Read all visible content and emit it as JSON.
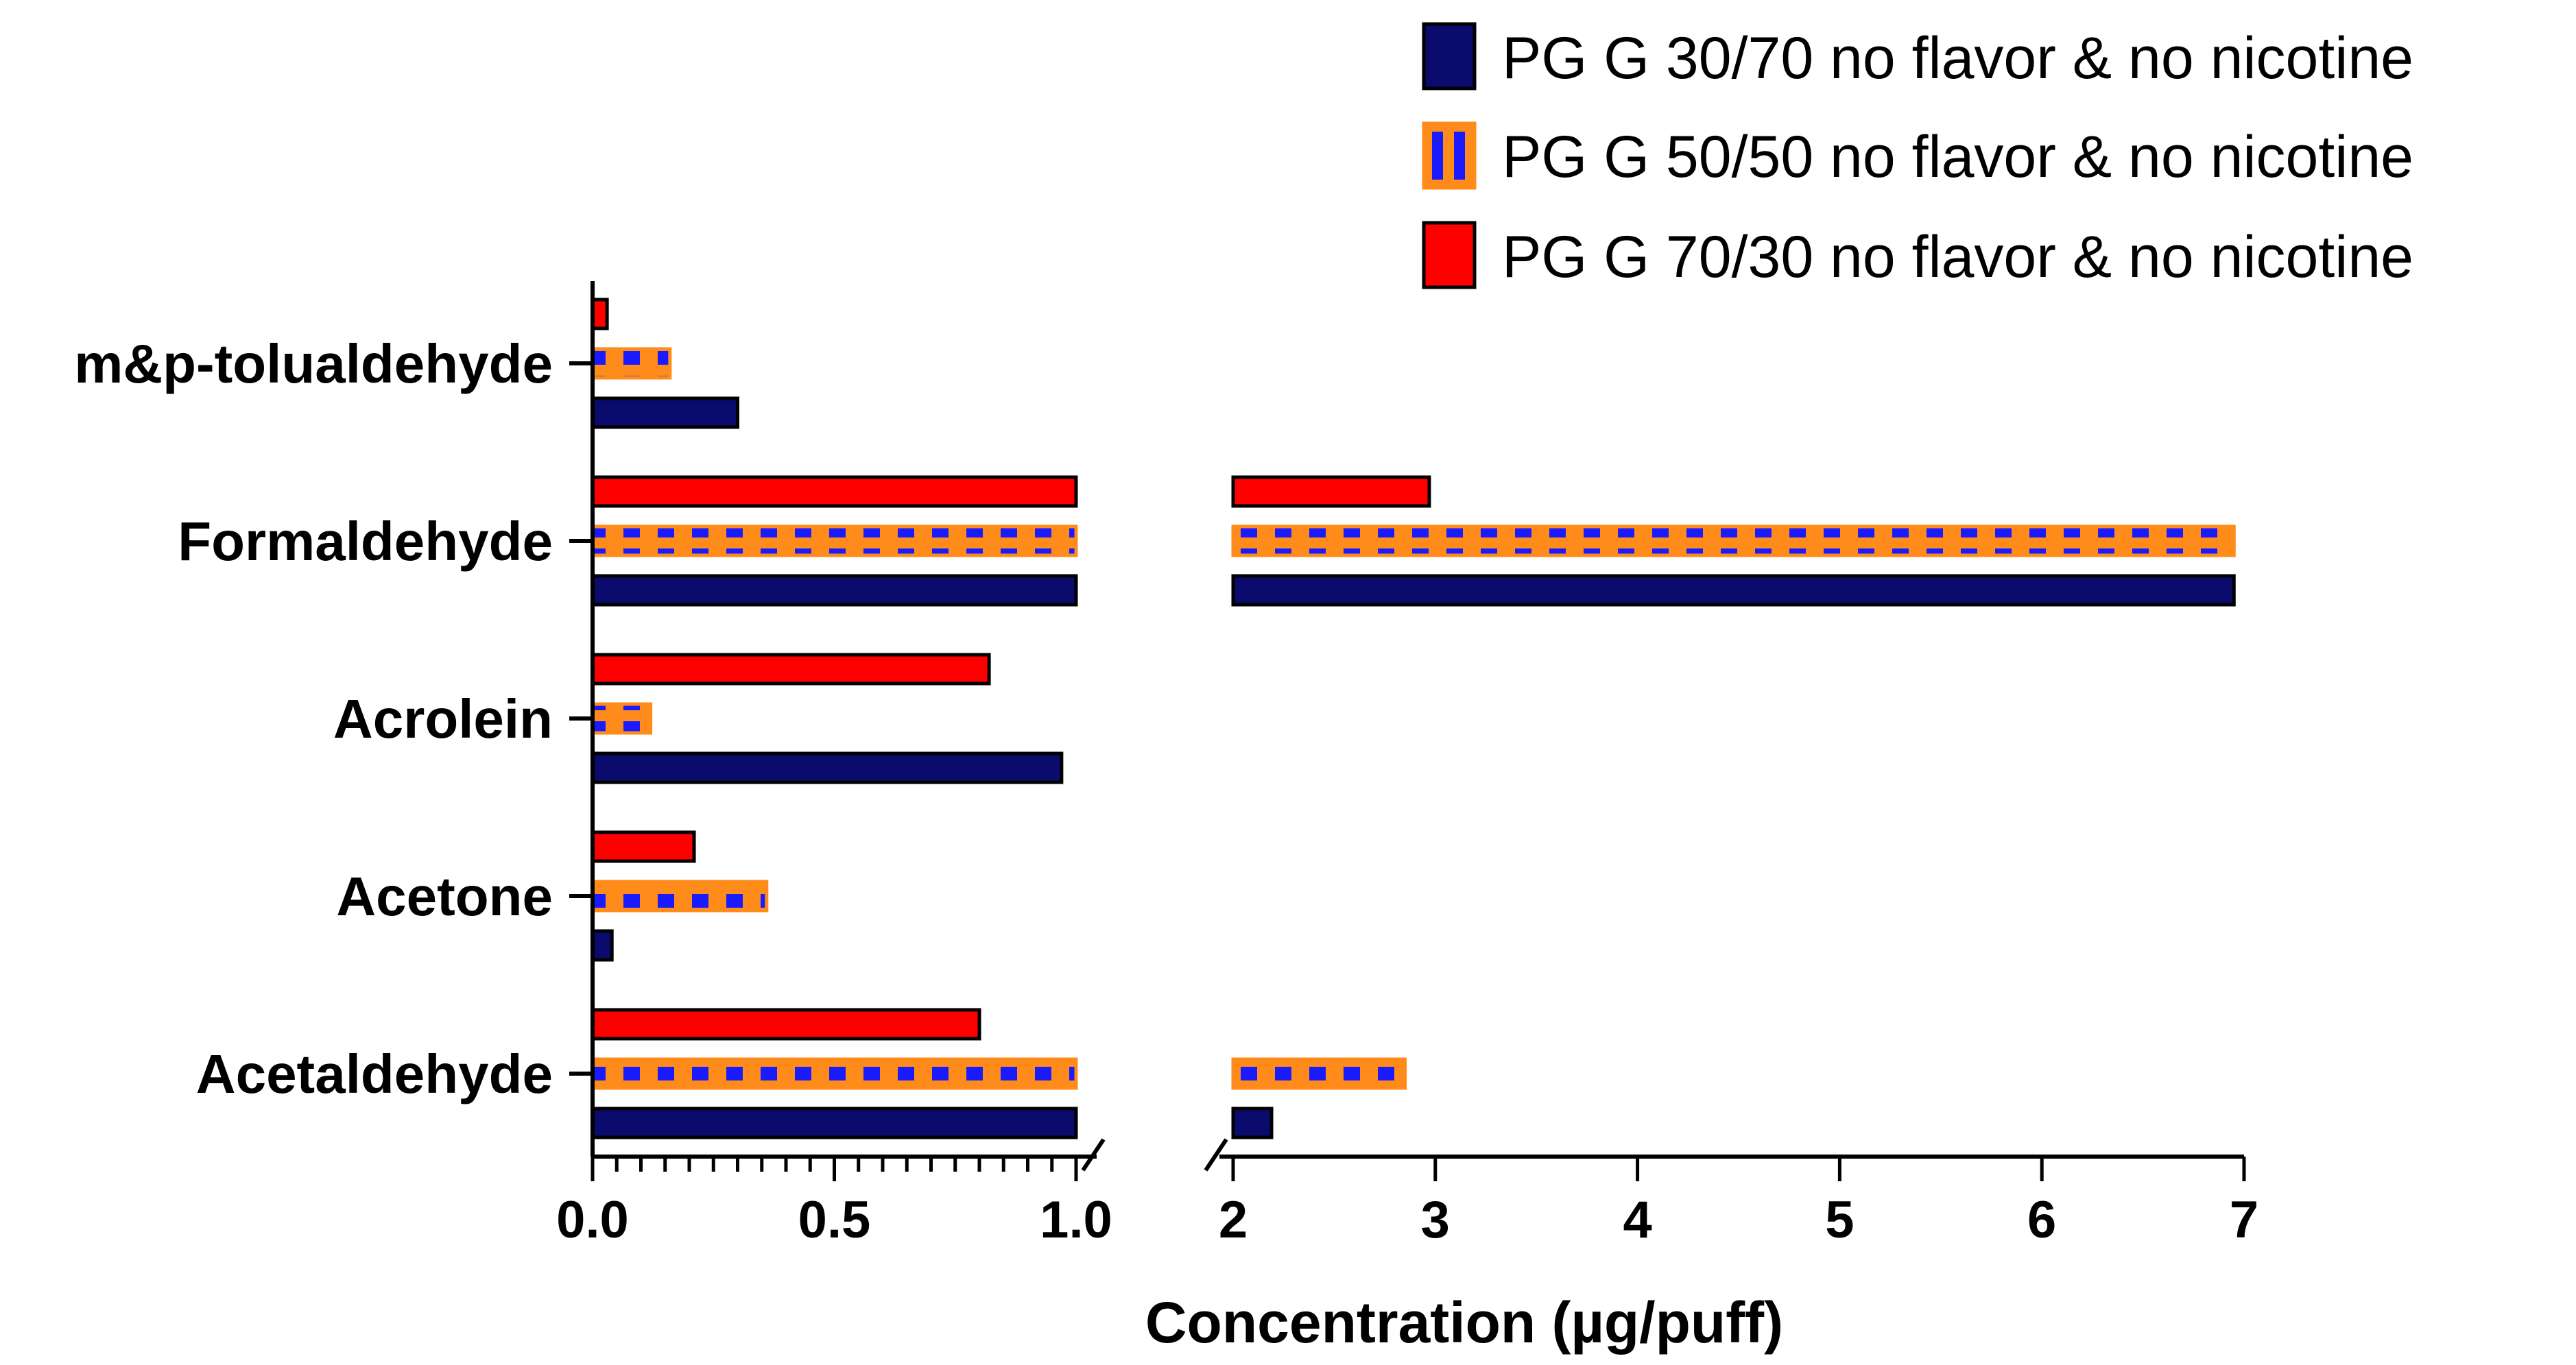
{
  "chart_data": {
    "type": "bar",
    "orientation": "horizontal",
    "xlabel": "Concentration (µg/puff)",
    "ylabel": "",
    "axis_break": {
      "from": 1.0,
      "to": 2.0
    },
    "xlim_segments": [
      [
        0,
        1.0
      ],
      [
        2,
        7
      ]
    ],
    "x_ticks_left": [
      "0.0",
      "0.5",
      "1.0"
    ],
    "x_ticks_right": [
      "2",
      "3",
      "4",
      "5",
      "6",
      "7"
    ],
    "legend_position": "top-right",
    "categories": [
      "m&p-tolualdehyde",
      "Formaldehyde",
      "Acrolein",
      "Acetone",
      "Acetaldehyde"
    ],
    "series": [
      {
        "name": "PG G 30/70 no flavor & no nicotine",
        "color": "#0b0b6e",
        "pattern": "solid",
        "values": [
          0.3,
          6.95,
          0.97,
          0.04,
          2.19
        ]
      },
      {
        "name": "PG G 50/50 no flavor & no nicotine",
        "color": "#1a1aff",
        "border_color": "#ff8c1a",
        "pattern": "blue-orange-dash",
        "values": [
          0.16,
          6.95,
          0.12,
          0.36,
          2.85
        ]
      },
      {
        "name": "PG G 70/30 no flavor & no nicotine",
        "color": "#ff0000",
        "pattern": "solid",
        "values": [
          0.03,
          2.97,
          0.82,
          0.21,
          0.8
        ]
      }
    ]
  }
}
